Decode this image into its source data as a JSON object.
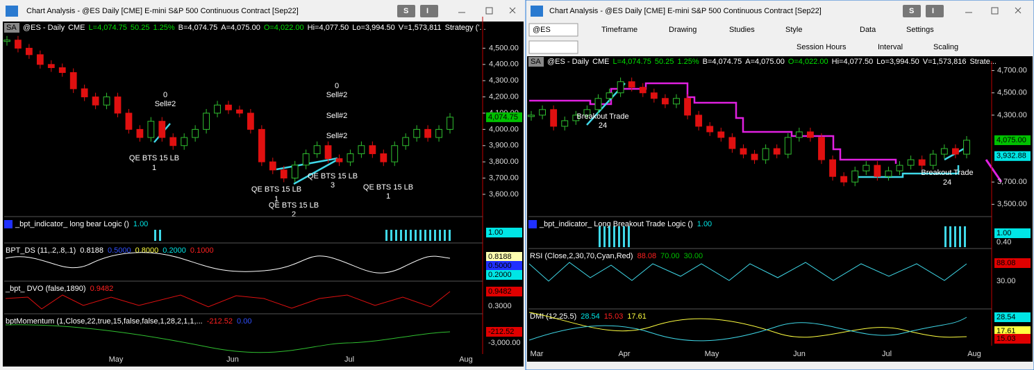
{
  "windows": [
    {
      "title": "Chart Analysis - @ES Daily [CME] E-mini S&P 500 Continuous Contract [Sep22]",
      "buttons": [
        "S",
        "I"
      ],
      "tag": "SA",
      "header": [
        {
          "text": "@ES - Daily",
          "color": "#ffffff"
        },
        {
          "text": "CME",
          "color": "#ffffff"
        },
        {
          "text": "L=4,074.75",
          "color": "#00e000"
        },
        {
          "text": "50.25",
          "color": "#00e000"
        },
        {
          "text": "1.25%",
          "color": "#00e000"
        },
        {
          "text": "B=4,074.75",
          "color": "#ffffff"
        },
        {
          "text": "A=4,075.00",
          "color": "#ffffff"
        },
        {
          "text": "O=4,022.00",
          "color": "#00e000"
        },
        {
          "text": "Hi=4,077.50",
          "color": "#ffffff"
        },
        {
          "text": "Lo=3,994.50",
          "color": "#ffffff"
        },
        {
          "text": "V=1,573,811",
          "color": "#ffffff"
        },
        {
          "text": "Strategy ('...",
          "color": "#ffffff"
        }
      ],
      "ylim": [
        3480,
        4660
      ],
      "yticks": [
        {
          "value": 4500,
          "label": "4,500.00"
        },
        {
          "value": 4400,
          "label": "4,400.00"
        },
        {
          "value": 4300,
          "label": "4,300.00"
        },
        {
          "value": 4200,
          "label": "4,200.00"
        },
        {
          "value": 4100,
          "label": "4,100.00"
        },
        {
          "value": 4000,
          "label": "4,000.00"
        },
        {
          "value": 3900,
          "label": "3,900.00"
        },
        {
          "value": 3800,
          "label": "3,800.00"
        },
        {
          "value": 3700,
          "label": "3,700.00"
        },
        {
          "value": 3600,
          "label": "3,600.00"
        }
      ],
      "current": [
        {
          "value": 4074.75,
          "label": "4,074.75",
          "color": "#00c000"
        }
      ],
      "closes": [
        4550,
        4500,
        4460,
        4400,
        4380,
        4350,
        4250,
        4200,
        4150,
        4200,
        4100,
        4000,
        3950,
        4050,
        3950,
        3900,
        3950,
        4000,
        4100,
        4150,
        4120,
        4100,
        4000,
        3800,
        3750,
        3700,
        3780,
        3850,
        3900,
        3820,
        3800,
        3850,
        3900,
        3850,
        3800,
        3900,
        3950,
        4000,
        3950,
        4000,
        4075
      ],
      "months": [
        "May",
        "Jun",
        "Jul",
        "Aug"
      ],
      "annotations": [
        [
          "0",
          "Sell#2"
        ],
        [
          "QE BTS 15 LB",
          "1"
        ],
        [
          "QE BTS 15 LB",
          "1"
        ],
        [
          "QE BTS 15 LB",
          "2"
        ],
        [
          "QE BTS 15 LB",
          "3"
        ],
        [
          "0",
          "Sell#2",
          "Sell#2",
          "Sell#2"
        ],
        [
          "QE BTS 15 LB",
          "1"
        ]
      ],
      "panes": [
        {
          "label": [
            {
              "text": "_bpt_indicator_ long bear Logic ()",
              "color": "#ffffff"
            },
            {
              "text": "1.00",
              "color": "#00e5e5"
            }
          ],
          "axis": [
            {
              "text": "1.00",
              "box": "#00e5e5"
            }
          ]
        },
        {
          "label": [
            {
              "text": "BPT_DS (11,.2,.8,.1)",
              "color": "#ffffff"
            },
            {
              "text": "0.8188",
              "color": "#ffffff"
            },
            {
              "text": "0.5000",
              "color": "#3050ff"
            },
            {
              "text": "0.8000",
              "color": "#ffff40"
            },
            {
              "text": "0.2000",
              "color": "#00e5e5"
            },
            {
              "text": "0.1000",
              "color": "#ff2020"
            }
          ],
          "axis": [
            {
              "text": "0.8188",
              "box": "#ffffb0"
            },
            {
              "text": "0.5000",
              "box": "#2030ff"
            },
            {
              "text": "0.2000",
              "box": "#00e5e5"
            }
          ]
        },
        {
          "label": [
            {
              "text": "_bpt_ DVO (false,1890)",
              "color": "#ffffff"
            },
            {
              "text": "0.9482",
              "color": "#ff2020"
            }
          ],
          "axis": [
            {
              "text": "0.9482",
              "box": "#e00000"
            },
            {
              "text": "0.3000"
            }
          ]
        },
        {
          "label": [
            {
              "text": "bptMomentum (1,Close,22,true,15,false,false,1,28,2,1,1,...",
              "color": "#ffffff"
            },
            {
              "text": "-212.52",
              "color": "#ff2020"
            },
            {
              "text": "0.00",
              "color": "#3050ff"
            }
          ],
          "axis": [
            {
              "text": "-212.52",
              "box": "#e00000"
            },
            {
              "text": "-3,000.00"
            }
          ]
        }
      ]
    },
    {
      "title": "Chart Analysis - @ES Daily [CME] E-mini S&P 500 Continuous Contract [Sep22]",
      "buttons": [
        "S",
        "I"
      ],
      "toolbar": {
        "symbol": "@ES",
        "row1": [
          "Timeframe",
          "Drawing",
          "Studies",
          "Style",
          "Data",
          "Settings"
        ],
        "row2": [
          "Session Hours",
          "Interval",
          "Scaling"
        ]
      },
      "tag": "SA",
      "header": [
        {
          "text": "@ES - Daily",
          "color": "#ffffff"
        },
        {
          "text": "CME",
          "color": "#ffffff"
        },
        {
          "text": "L=4,074.75",
          "color": "#00e000"
        },
        {
          "text": "50.25",
          "color": "#00e000"
        },
        {
          "text": "1.25%",
          "color": "#00e000"
        },
        {
          "text": "B=4,074.75",
          "color": "#ffffff"
        },
        {
          "text": "A=4,075.00",
          "color": "#ffffff"
        },
        {
          "text": "O=4,022.00",
          "color": "#00e000"
        },
        {
          "text": "Hi=4,077.50",
          "color": "#ffffff"
        },
        {
          "text": "Lo=3,994.50",
          "color": "#ffffff"
        },
        {
          "text": "V=1,573,816",
          "color": "#ffffff"
        },
        {
          "text": "Strate...",
          "color": "#ffffff"
        }
      ],
      "ylim": [
        3390,
        4735
      ],
      "yticks": [
        {
          "value": 4700,
          "label": "4,700.00"
        },
        {
          "value": 4500,
          "label": "4,500.00"
        },
        {
          "value": 4300,
          "label": "4,300.00"
        },
        {
          "value": 3700,
          "label": "3,700.00"
        },
        {
          "value": 3500,
          "label": "3,500.00"
        }
      ],
      "current": [
        {
          "value": 4075,
          "label": "4,075.00",
          "color": "#00c000"
        },
        {
          "value": 3932.88,
          "label": "3,932.88",
          "color": "#00e5e5"
        }
      ],
      "closes": [
        4300,
        4350,
        4200,
        4250,
        4300,
        4350,
        4450,
        4500,
        4600,
        4550,
        4500,
        4450,
        4400,
        4450,
        4300,
        4200,
        4150,
        4100,
        4000,
        3950,
        3900,
        4000,
        3950,
        4100,
        4150,
        4100,
        3900,
        3750,
        3700,
        3800,
        3850,
        3750,
        3800,
        3850,
        3900,
        3850,
        3950,
        4000,
        3950,
        4075
      ],
      "months": [
        "Mar",
        "Apr",
        "May",
        "Jun",
        "Jul",
        "Aug"
      ],
      "annotations": [
        [
          "Breakout Trade",
          "24"
        ],
        [
          "Breakout Trade",
          "24"
        ]
      ],
      "panes": [
        {
          "label": [
            {
              "text": "_bpt_indicator_ Long Breakout Trade Logic ()",
              "color": "#ffffff"
            },
            {
              "text": "1.00",
              "color": "#00e5e5"
            }
          ],
          "axis": [
            {
              "text": "1.00",
              "box": "#00e5e5"
            },
            {
              "text": "0.40"
            }
          ]
        },
        {
          "label": [
            {
              "text": "RSI (Close,2,30,70,Cyan,Red)",
              "color": "#ffffff"
            },
            {
              "text": "88.08",
              "color": "#ff2020"
            },
            {
              "text": "70.00",
              "color": "#00c000"
            },
            {
              "text": "30.00",
              "color": "#00c000"
            }
          ],
          "axis": [
            {
              "text": "88.08",
              "box": "#e00000"
            },
            {
              "text": "30.00"
            }
          ]
        },
        {
          "label": [
            {
              "text": "DMI (12,25.5)",
              "color": "#ffffff"
            },
            {
              "text": "28.54",
              "color": "#00e5e5"
            },
            {
              "text": "15.03",
              "color": "#ff2020"
            },
            {
              "text": "17.61",
              "color": "#ffff40"
            }
          ],
          "axis": [
            {
              "text": "28.54",
              "box": "#00e5e5"
            },
            {
              "text": "17.61",
              "box": "#ffff40"
            },
            {
              "text": "15.03",
              "box": "#e00000"
            }
          ]
        }
      ]
    }
  ]
}
